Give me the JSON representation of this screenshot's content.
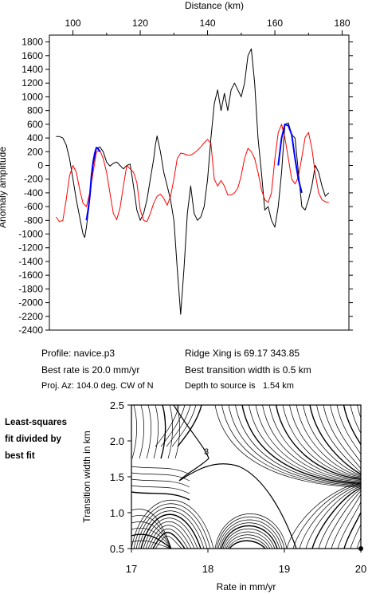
{
  "info": {
    "profile": "Profile: navice.p3",
    "best_rate": "Best rate is 20.0 mm/yr",
    "proj_az": "Proj. Az: 104.0 deg. CW of N",
    "ridge_xing": "Ridge Xing is 69.17 343.85",
    "best_width": "Best transition width is 0.5 km",
    "depth": "Depth to source is   1.54 km"
  },
  "side_note": [
    "Least-squares",
    "fit divided by",
    "best fit"
  ],
  "colors": {
    "observed": "#000000",
    "model": "#ff0000",
    "fit_window": "#0000ff"
  },
  "chart_data": [
    {
      "type": "line",
      "xlabel": "Distance (km)",
      "ylabel": "Anomaly amplitude",
      "xlim": [
        93,
        182
      ],
      "ylim": [
        -2400,
        1900
      ],
      "xticks": [
        100,
        120,
        140,
        160,
        180
      ],
      "yticks": [
        1800,
        1600,
        1400,
        1200,
        1000,
        800,
        600,
        400,
        200,
        0,
        -200,
        -400,
        -600,
        -800,
        -1000,
        -1200,
        -1400,
        -1600,
        -1800,
        -2000,
        -2200,
        -2400
      ],
      "xaxis_position": "top",
      "grid": false,
      "series": [
        {
          "role": "observed",
          "color": "#000000",
          "x": [
            95,
            96,
            97,
            98,
            99,
            100,
            101,
            102,
            103,
            103.5,
            104,
            105,
            106,
            107,
            108,
            109,
            110,
            111,
            112,
            113,
            114,
            115,
            116,
            117,
            118,
            119,
            120,
            121,
            122,
            123,
            124,
            124.5,
            125,
            126,
            127,
            128,
            129,
            130,
            131,
            132,
            133,
            134,
            135,
            136,
            137,
            138,
            139,
            140,
            141,
            142,
            143,
            144,
            145,
            146,
            147,
            148,
            149,
            150,
            151,
            152,
            153,
            154,
            155,
            156,
            157,
            158,
            159,
            160,
            161,
            162,
            163,
            164,
            165,
            166,
            167,
            168,
            169,
            170,
            171,
            172,
            173,
            174,
            175,
            176
          ],
          "y": [
            420,
            420,
            400,
            300,
            100,
            -200,
            -500,
            -750,
            -1000,
            -1050,
            -900,
            -500,
            0,
            250,
            270,
            200,
            50,
            -10,
            30,
            50,
            0,
            -50,
            0,
            20,
            -300,
            -650,
            -800,
            -700,
            -500,
            -200,
            100,
            300,
            430,
            200,
            -100,
            -300,
            -500,
            -800,
            -1500,
            -2170,
            -1500,
            -700,
            -300,
            -700,
            -800,
            -750,
            -600,
            -200,
            400,
            900,
            1100,
            800,
            1050,
            800,
            1100,
            1200,
            1100,
            1000,
            1200,
            1600,
            1700,
            1200,
            400,
            -100,
            -650,
            -600,
            -800,
            -900,
            -600,
            -100,
            600,
            620,
            450,
            400,
            -100,
            -600,
            -650,
            -500,
            -300,
            0,
            -100,
            -300,
            -450,
            -400
          ]
        },
        {
          "role": "model",
          "color": "#ff0000",
          "x": [
            95,
            96,
            97,
            98,
            99,
            100,
            101,
            102,
            103,
            104,
            105,
            106,
            107,
            108,
            109,
            110,
            111,
            112,
            113,
            114,
            115,
            116,
            117,
            118,
            119,
            120,
            121,
            122,
            123,
            124,
            125,
            126,
            127,
            128,
            129,
            130,
            131,
            132,
            133,
            134,
            135,
            136,
            137,
            138,
            139,
            140,
            141,
            142,
            143,
            144,
            145,
            146,
            147,
            148,
            149,
            150,
            151,
            152,
            153,
            154,
            155,
            156,
            157,
            158,
            159,
            160,
            161,
            162,
            163,
            164,
            165,
            166,
            167,
            168,
            169,
            170,
            171,
            172,
            173,
            174,
            175,
            176
          ],
          "y": [
            -750,
            -820,
            -800,
            -500,
            -150,
            0,
            -100,
            -350,
            -550,
            -600,
            -400,
            -100,
            200,
            220,
            100,
            -100,
            -400,
            -700,
            -790,
            -620,
            -300,
            0,
            -50,
            -100,
            -250,
            -650,
            -800,
            -820,
            -700,
            -550,
            -450,
            -420,
            -480,
            -580,
            -450,
            -200,
            100,
            180,
            170,
            150,
            150,
            180,
            220,
            270,
            330,
            380,
            320,
            -200,
            -300,
            -220,
            -300,
            -430,
            -430,
            -400,
            -330,
            -150,
            100,
            250,
            200,
            100,
            -100,
            -350,
            -500,
            -540,
            -400,
            100,
            480,
            600,
            400,
            100,
            -200,
            -270,
            -170,
            120,
            410,
            480,
            250,
            -120,
            -400,
            -500,
            -530,
            -540
          ]
        },
        {
          "role": "fit-window-1",
          "color": "#0000ff",
          "x": [
            104,
            104.5,
            105,
            105.5,
            106,
            106.5,
            107,
            107.5,
            108
          ],
          "y": [
            -800,
            -650,
            -450,
            -150,
            50,
            180,
            260,
            240,
            200
          ]
        },
        {
          "role": "fit-window-2",
          "color": "#0000ff",
          "x": [
            161,
            162,
            163,
            164,
            165,
            166,
            167,
            168
          ],
          "y": [
            0,
            400,
            600,
            580,
            450,
            100,
            -200,
            -400
          ]
        }
      ]
    },
    {
      "type": "contour",
      "xlabel": "Rate in mm/yr",
      "ylabel": "Transition width in km",
      "xlim": [
        17,
        20
      ],
      "ylim": [
        0.5,
        2.5
      ],
      "xticks": [
        17,
        18,
        19,
        20
      ],
      "yticks": [
        0.5,
        1.0,
        1.5,
        2.0,
        2.5
      ],
      "contour_label": "3",
      "best_fit_marker": {
        "x": 20,
        "y": 0.5
      }
    }
  ]
}
